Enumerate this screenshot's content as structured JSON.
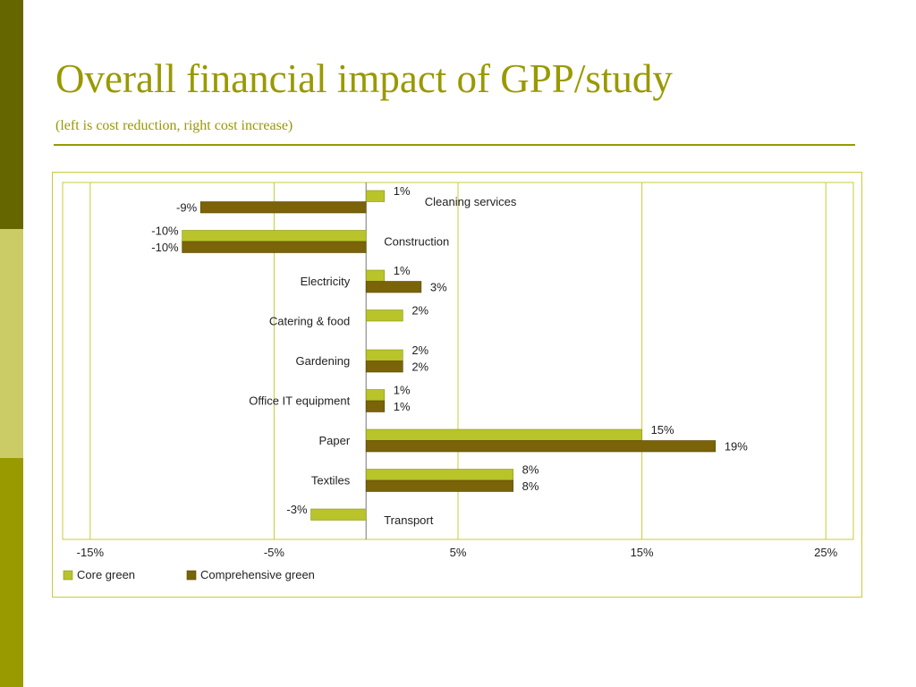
{
  "slide": {
    "title": "Overall financial impact of  GPP/study",
    "subtitle": "(left is cost reduction, right cost increase)"
  },
  "colors": {
    "stripe_dark": "#666600",
    "stripe_light": "#cccc66",
    "stripe_mid": "#999900",
    "title": "#999900",
    "core_green": "#b8c42a",
    "comprehensive_green": "#7a6308",
    "gridline": "#c8cc3a"
  },
  "chart_data": {
    "type": "bar",
    "orientation": "horizontal",
    "categories": [
      "Cleaning services",
      "Construction",
      "Electricity",
      "Catering & food",
      "Gardening",
      "Office IT equipment",
      "Paper",
      "Textiles",
      "Transport"
    ],
    "series": [
      {
        "name": "Core green",
        "values": [
          1,
          -10,
          1,
          2,
          2,
          1,
          15,
          8,
          -3
        ],
        "labels": [
          "1%",
          "-10%",
          "1%",
          "2%",
          "2%",
          "1%",
          "15%",
          "8%",
          "-3%"
        ]
      },
      {
        "name": "Comprehensive green",
        "values": [
          -9,
          -10,
          3,
          null,
          2,
          1,
          19,
          8,
          null
        ],
        "labels": [
          "-9%",
          "-10%",
          "3%",
          null,
          "2%",
          "1%",
          "19%",
          "8%",
          null
        ]
      }
    ],
    "xticks": [
      -15,
      -5,
      5,
      15,
      25
    ],
    "xtick_labels": [
      "-15%",
      "-5%",
      "5%",
      "15%",
      "25%"
    ],
    "xlim": [
      -16.5,
      26.5
    ],
    "grid": true,
    "legend_position": "bottom-left"
  }
}
